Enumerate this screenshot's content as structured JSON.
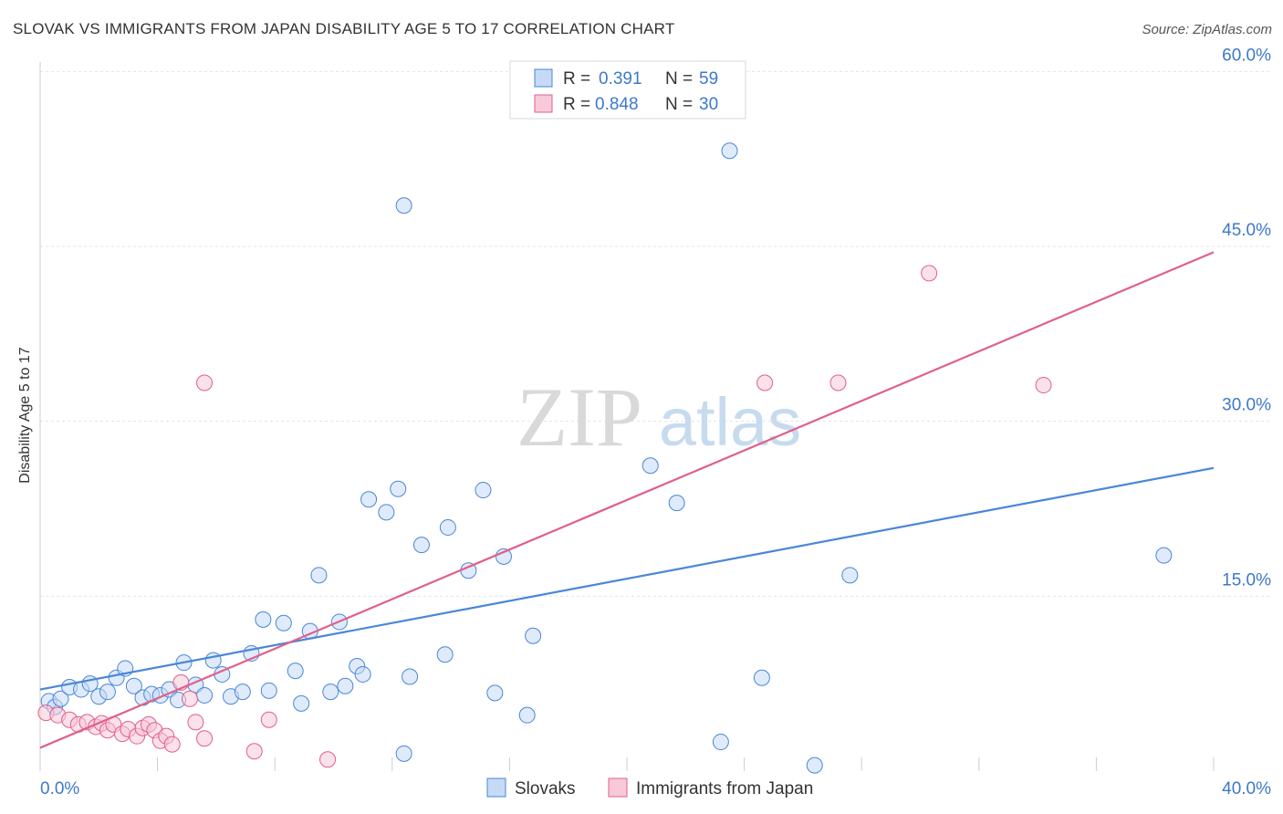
{
  "chart_data": {
    "type": "scatter",
    "title": "SLOVAK VS IMMIGRANTS FROM JAPAN DISABILITY AGE 5 TO 17 CORRELATION CHART",
    "source": "Source: ZipAtlas.com",
    "xlabel": "",
    "ylabel": "Disability Age 5 to 17",
    "xlim": [
      0,
      40
    ],
    "ylim": [
      0,
      63
    ],
    "x_tick_labels": [
      "0.0%",
      "40.0%"
    ],
    "y_ticks": [
      15,
      30,
      45,
      60
    ],
    "y_tick_labels": [
      "15.0%",
      "30.0%",
      "45.0%",
      "60.0%"
    ],
    "grid": true,
    "legend_position": "top-center",
    "watermark": {
      "zip": "ZIP",
      "atlas": "atlas"
    },
    "legend": [
      {
        "r_label": "R =",
        "r_value": "0.391",
        "n_label": "N =",
        "n_value": "59"
      },
      {
        "r_label": "R =",
        "r_value": "0.848",
        "n_label": "N =",
        "n_value": "30"
      }
    ],
    "series": [
      {
        "name": "Slovaks",
        "color": "#4a86d8",
        "fill": "#c5dbf5",
        "trend": {
          "x": [
            0,
            40
          ],
          "y": [
            7.0,
            26.0
          ]
        },
        "points": [
          [
            0.3,
            6.0
          ],
          [
            0.5,
            5.5
          ],
          [
            0.7,
            6.2
          ],
          [
            1.0,
            7.2
          ],
          [
            1.4,
            7.0
          ],
          [
            1.7,
            7.5
          ],
          [
            2.0,
            6.4
          ],
          [
            2.3,
            6.8
          ],
          [
            2.6,
            8.0
          ],
          [
            2.9,
            8.8
          ],
          [
            3.2,
            7.3
          ],
          [
            3.5,
            6.3
          ],
          [
            3.8,
            6.6
          ],
          [
            4.1,
            6.5
          ],
          [
            4.4,
            7.0
          ],
          [
            4.7,
            6.1
          ],
          [
            4.9,
            9.3
          ],
          [
            5.3,
            7.4
          ],
          [
            5.6,
            6.5
          ],
          [
            5.9,
            9.5
          ],
          [
            6.2,
            8.3
          ],
          [
            6.5,
            6.4
          ],
          [
            6.9,
            6.8
          ],
          [
            7.2,
            10.1
          ],
          [
            7.6,
            13.0
          ],
          [
            7.8,
            6.9
          ],
          [
            8.3,
            12.7
          ],
          [
            8.7,
            8.6
          ],
          [
            8.9,
            5.8
          ],
          [
            9.2,
            12.0
          ],
          [
            9.5,
            16.8
          ],
          [
            9.9,
            6.8
          ],
          [
            10.2,
            12.8
          ],
          [
            10.4,
            7.3
          ],
          [
            10.8,
            9.0
          ],
          [
            11.0,
            8.3
          ],
          [
            11.2,
            23.3
          ],
          [
            11.8,
            22.2
          ],
          [
            12.2,
            24.2
          ],
          [
            12.4,
            1.5
          ],
          [
            12.4,
            48.5
          ],
          [
            12.6,
            8.1
          ],
          [
            13.0,
            19.4
          ],
          [
            13.8,
            10.0
          ],
          [
            13.9,
            20.9
          ],
          [
            14.6,
            17.2
          ],
          [
            15.1,
            24.1
          ],
          [
            15.5,
            6.7
          ],
          [
            15.8,
            18.4
          ],
          [
            16.6,
            4.8
          ],
          [
            16.8,
            11.6
          ],
          [
            20.8,
            26.2
          ],
          [
            21.7,
            23.0
          ],
          [
            23.2,
            2.5
          ],
          [
            23.5,
            53.2
          ],
          [
            24.6,
            8.0
          ],
          [
            26.4,
            0.5
          ],
          [
            27.6,
            16.8
          ],
          [
            38.3,
            18.5
          ]
        ]
      },
      {
        "name": "Immigrants from Japan",
        "color": "#e0608a",
        "fill": "#f8c9d8",
        "trend": {
          "x": [
            0,
            40
          ],
          "y": [
            2.0,
            44.5
          ]
        },
        "points": [
          [
            0.2,
            5.0
          ],
          [
            0.6,
            4.8
          ],
          [
            1.0,
            4.4
          ],
          [
            1.3,
            4.0
          ],
          [
            1.6,
            4.2
          ],
          [
            1.9,
            3.8
          ],
          [
            2.1,
            4.1
          ],
          [
            2.3,
            3.5
          ],
          [
            2.5,
            4.0
          ],
          [
            2.8,
            3.2
          ],
          [
            3.0,
            3.6
          ],
          [
            3.3,
            3.0
          ],
          [
            3.5,
            3.7
          ],
          [
            3.7,
            4.0
          ],
          [
            3.9,
            3.5
          ],
          [
            4.1,
            2.6
          ],
          [
            4.3,
            3.0
          ],
          [
            4.5,
            2.3
          ],
          [
            4.8,
            7.6
          ],
          [
            5.1,
            6.2
          ],
          [
            5.3,
            4.2
          ],
          [
            5.6,
            2.8
          ],
          [
            5.6,
            33.3
          ],
          [
            7.3,
            1.7
          ],
          [
            7.8,
            4.4
          ],
          [
            9.8,
            1.0
          ],
          [
            24.7,
            33.3
          ],
          [
            27.2,
            33.3
          ],
          [
            30.3,
            42.7
          ],
          [
            34.2,
            33.1
          ]
        ]
      }
    ],
    "legend_bottom": [
      "Slovaks",
      "Immigrants from Japan"
    ]
  }
}
